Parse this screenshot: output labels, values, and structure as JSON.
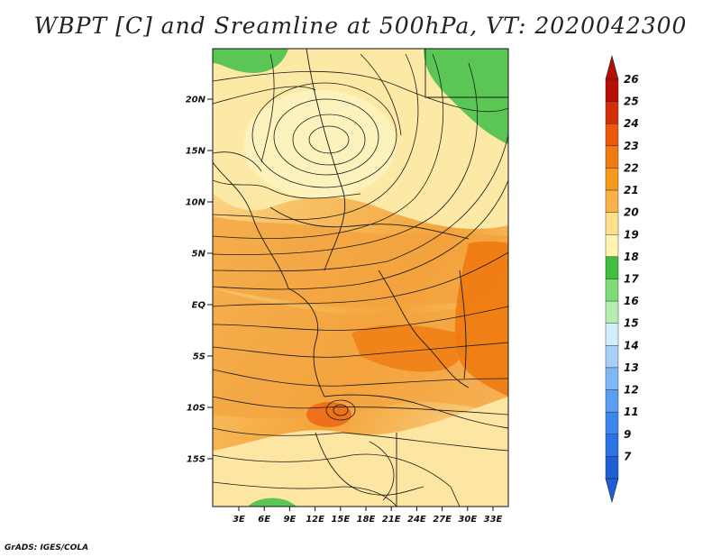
{
  "title": "WBPT [C] and Sreamline at 500hPa, VT: 2020042300",
  "credit": "GrADS: IGES/COLA",
  "lat_labels": [
    "20N",
    "15N",
    "10N",
    "5N",
    "EQ",
    "5S",
    "10S",
    "15S"
  ],
  "lon_labels": [
    "3E",
    "6E",
    "9E",
    "12E",
    "15E",
    "18E",
    "21E",
    "24E",
    "27E",
    "30E",
    "33E"
  ],
  "colorbar": {
    "labels": [
      "7",
      "9",
      "11",
      "12",
      "13",
      "14",
      "15",
      "16",
      "17",
      "18",
      "19",
      "20",
      "21",
      "22",
      "23",
      "24",
      "25",
      "26"
    ],
    "colors": [
      "#1f5fd6",
      "#2b73e3",
      "#3d87ec",
      "#5a9ef2",
      "#7fb6f6",
      "#a7cff8",
      "#d2eefc",
      "#b4eeb0",
      "#7ddc78",
      "#3fbf3d",
      "#fff3b0",
      "#fde08a",
      "#f7b34a",
      "#f59a1c",
      "#ef7a10",
      "#ea5a0c",
      "#d42f08",
      "#b50f04"
    ]
  },
  "map": {
    "lat_range": [
      -20,
      24.5
    ],
    "lon_range": [
      0,
      35
    ],
    "variable": "WBPT",
    "unit": "C",
    "level": "500hPa",
    "valid_time": "2020042300"
  }
}
